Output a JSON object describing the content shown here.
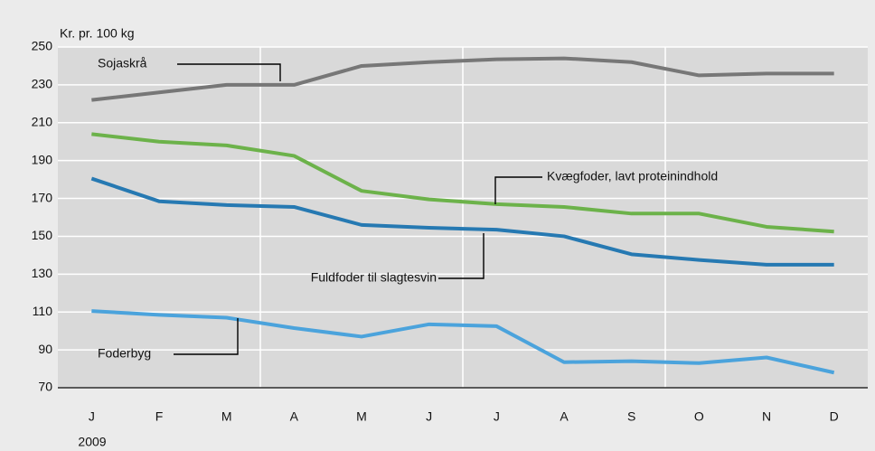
{
  "chart_data": {
    "type": "line",
    "y_axis_label": "Kr. pr. 100 kg",
    "x_axis_label": "2009",
    "categories": [
      "J",
      "F",
      "M",
      "A",
      "M",
      "J",
      "J",
      "A",
      "S",
      "O",
      "N",
      "D"
    ],
    "series": [
      {
        "name": "Sojaskrå",
        "color": "#777777",
        "values": [
          222,
          226,
          230,
          230,
          240,
          242,
          243.5,
          244,
          242,
          235,
          236,
          236
        ]
      },
      {
        "name": "Kvægfoder, lavt proteinindhold",
        "color": "#6cb24a",
        "values": [
          204,
          200,
          198,
          192.5,
          174,
          169.5,
          167,
          165.5,
          162,
          162,
          155,
          152.5
        ]
      },
      {
        "name": "Fuldfoder til slagtesvin",
        "color": "#2679b2",
        "values": [
          180.5,
          168.5,
          166.5,
          165.5,
          156,
          154.5,
          153.5,
          150,
          140.5,
          137.5,
          135,
          135
        ]
      },
      {
        "name": "Foderbyg",
        "color": "#4ba3dc",
        "values": [
          110.5,
          108.5,
          107,
          101.5,
          97,
          103.5,
          102.5,
          83.5,
          84,
          83,
          86,
          78
        ]
      }
    ],
    "ylim": [
      70,
      250
    ],
    "yticks": [
      70,
      90,
      110,
      130,
      150,
      170,
      190,
      210,
      230,
      250
    ],
    "grid": true
  }
}
